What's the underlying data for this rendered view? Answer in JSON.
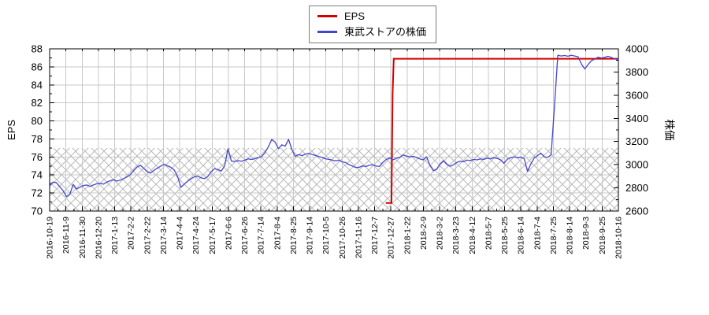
{
  "legend": {
    "items": [
      {
        "label": "EPS",
        "color": "#d40000"
      },
      {
        "label": "東武ストアの株価",
        "color": "#4444cc"
      }
    ]
  },
  "chart_data": {
    "type": "line",
    "title": "",
    "grid": true,
    "legend_position": "top-center",
    "left_axis": {
      "label": "EPS",
      "min": 70,
      "max": 88,
      "major_step": 2,
      "minor_step": 1,
      "tick_labels": [
        "70",
        "72",
        "74",
        "76",
        "78",
        "80",
        "82",
        "84",
        "86",
        "88"
      ]
    },
    "right_axis": {
      "label": "株価",
      "min": 2600,
      "max": 4000,
      "major_step": 200,
      "minor_step": 100,
      "tick_labels": [
        "2600",
        "2800",
        "3000",
        "3200",
        "3400",
        "3600",
        "3800",
        "4000"
      ]
    },
    "x_tick_labels": [
      "2016-10-19",
      "2016-11-9",
      "2016-11-30",
      "2016-12-20",
      "2017-1-13",
      "2017-2-2",
      "2017-2-22",
      "2017-3-14",
      "2017-4-4",
      "2017-4-24",
      "2017-5-17",
      "2017-6-6",
      "2017-6-26",
      "2017-7-14",
      "2017-8-4",
      "2017-8-25",
      "2017-9-14",
      "2017-10-5",
      "2017-10-26",
      "2017-11-16",
      "2017-12-7",
      "2017-12-27",
      "2018-1-22",
      "2018-2-9",
      "2018-3-2",
      "2018-3-23",
      "2018-4-12",
      "2018-5-7",
      "2018-5-25",
      "2018-6-14",
      "2018-7-4",
      "2018-7-25",
      "2018-8-14",
      "2018-9-3",
      "2018-9-25",
      "2018-10-16"
    ],
    "hatch_band": {
      "axis": "left",
      "from": 70,
      "to": 77,
      "style": "gray cross-hatch"
    },
    "series": [
      {
        "name": "EPS",
        "axis": "left",
        "color": "#d40000",
        "width": 2,
        "points_xpct_value": [
          [
            59.1,
            70.9
          ],
          [
            60.1,
            70.9
          ],
          [
            60.3,
            83.0
          ],
          [
            60.5,
            86.9
          ],
          [
            100,
            86.9
          ]
        ]
      },
      {
        "name": "東武ストアの株価",
        "axis": "right",
        "color": "#4444cc",
        "width": 1.3,
        "sampling": "uniform_xpct_0_to_100",
        "values": [
          2820,
          2850,
          2845,
          2810,
          2775,
          2725,
          2745,
          2830,
          2790,
          2805,
          2820,
          2825,
          2812,
          2825,
          2835,
          2840,
          2832,
          2850,
          2862,
          2870,
          2858,
          2868,
          2880,
          2895,
          2915,
          2950,
          2980,
          2995,
          2968,
          2940,
          2928,
          2952,
          2970,
          2988,
          3005,
          2990,
          2978,
          2955,
          2900,
          2805,
          2832,
          2858,
          2878,
          2895,
          2902,
          2886,
          2880,
          2898,
          2940,
          2965,
          2958,
          2945,
          2990,
          3138,
          3032,
          3028,
          3035,
          3030,
          3040,
          3050,
          3045,
          3052,
          3060,
          3070,
          3105,
          3155,
          3218,
          3195,
          3138,
          3172,
          3160,
          3218,
          3130,
          3072,
          3088,
          3078,
          3092,
          3098,
          3088,
          3080,
          3070,
          3062,
          3050,
          3046,
          3040,
          3032,
          3040,
          3024,
          3018,
          3000,
          2988,
          2975,
          2978,
          2990,
          2985,
          2995,
          3000,
          2988,
          2985,
          3020,
          3045,
          3058,
          3042,
          3055,
          3062,
          3085,
          3075,
          3068,
          3072,
          3062,
          3050,
          3042,
          3068,
          2995,
          2948,
          2960,
          3005,
          3035,
          3002,
          2986,
          3000,
          3020,
          3030,
          3026,
          3040,
          3036,
          3045,
          3042,
          3050,
          3046,
          3056,
          3050,
          3060,
          3054,
          3042,
          3012,
          3048,
          3060,
          3068,
          3060,
          3066,
          3052,
          2942,
          3008,
          3058,
          3080,
          3098,
          3068,
          3064,
          3085,
          3500,
          3945,
          3938,
          3942,
          3936,
          3944,
          3938,
          3932,
          3870,
          3826,
          3865,
          3898,
          3912,
          3928,
          3920,
          3928,
          3935,
          3925,
          3912,
          3910
        ]
      }
    ]
  },
  "style": {
    "grid_color": "#c8c8c8",
    "hatch_color": "#b9b9b9",
    "axis_color": "#000000",
    "background": "#ffffff"
  }
}
